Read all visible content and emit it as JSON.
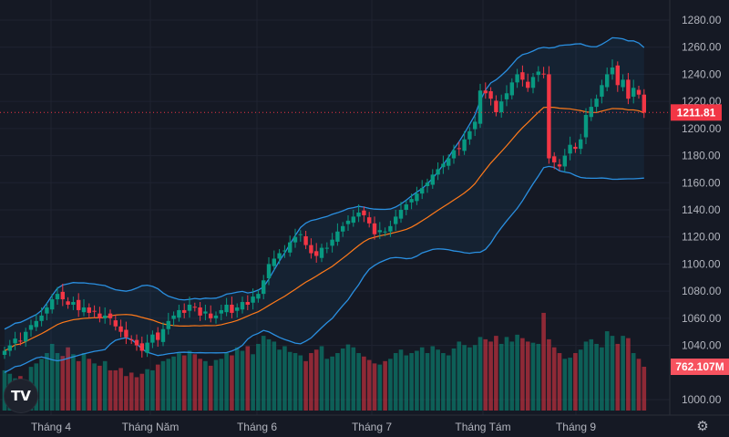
{
  "chart_data": {
    "type": "candlestick",
    "title": "",
    "x_tick_labels": [
      "Tháng 4",
      "Tháng Năm",
      "Tháng 6",
      "Tháng 7",
      "Tháng Tám",
      "Tháng 9"
    ],
    "y_tick_labels": [
      "1280.00",
      "1260.00",
      "1240.00",
      "1220.00",
      "1200.00",
      "1180.00",
      "1160.00",
      "1140.00",
      "1120.00",
      "1100.00",
      "1080.00",
      "1060.00",
      "1040.00",
      "1000.00"
    ],
    "ylim": [
      1000,
      1280
    ],
    "grid": true,
    "last_price_label": "1211.81",
    "last_volume_label": "762.107M",
    "close": [
      1036,
      1040,
      1045,
      1043,
      1050,
      1055,
      1058,
      1062,
      1068,
      1074,
      1078,
      1074,
      1070,
      1072,
      1066,
      1068,
      1064,
      1065,
      1060,
      1062,
      1060,
      1054,
      1050,
      1046,
      1044,
      1040,
      1036,
      1042,
      1048,
      1044,
      1052,
      1058,
      1062,
      1066,
      1064,
      1070,
      1068,
      1062,
      1065,
      1060,
      1062,
      1066,
      1070,
      1064,
      1068,
      1072,
      1070,
      1076,
      1078,
      1088,
      1100,
      1104,
      1108,
      1110,
      1116,
      1120,
      1122,
      1114,
      1108,
      1106,
      1112,
      1112,
      1118,
      1124,
      1128,
      1132,
      1135,
      1138,
      1136,
      1130,
      1122,
      1125,
      1124,
      1128,
      1135,
      1140,
      1144,
      1148,
      1152,
      1156,
      1160,
      1166,
      1170,
      1174,
      1178,
      1184,
      1185,
      1192,
      1198,
      1205,
      1228,
      1226,
      1222,
      1212,
      1220,
      1226,
      1234,
      1240,
      1236,
      1230,
      1238,
      1242,
      1240,
      1178,
      1175,
      1172,
      1180,
      1188,
      1185,
      1192,
      1210,
      1216,
      1222,
      1232,
      1240,
      1245,
      1232,
      1236,
      1222,
      1230,
      1225,
      1211.81
    ],
    "volume_millions": [
      700,
      640,
      560,
      600,
      520,
      760,
      820,
      900,
      1000,
      1160,
      1000,
      950,
      1100,
      980,
      860,
      1000,
      900,
      820,
      780,
      860,
      700,
      700,
      740,
      600,
      660,
      580,
      640,
      720,
      700,
      800,
      860,
      900,
      940,
      1000,
      960,
      1040,
      980,
      900,
      860,
      780,
      880,
      900,
      1000,
      960,
      1100,
      1040,
      1120,
      980,
      1160,
      1300,
      1240,
      1200,
      1060,
      1120,
      1020,
      1000,
      960,
      860,
      1000,
      1060,
      1120,
      900,
      940,
      1000,
      1080,
      1150,
      1100,
      1000,
      940,
      880,
      820,
      800,
      860,
      900,
      1000,
      1060,
      960,
      1000,
      1040,
      1100,
      1000,
      1120,
      1060,
      1000,
      960,
      1080,
      1200,
      1140,
      1100,
      1140,
      1280,
      1240,
      1200,
      1300,
      1160,
      1280,
      1200,
      1320,
      1260,
      1200,
      1180,
      1160,
      1700,
      1240,
      1100,
      1000,
      900,
      920,
      1000,
      1060,
      1200,
      1240,
      1160,
      1100,
      1380,
      1300,
      1160,
      1300,
      1260,
      1000,
      900,
      762.107
    ],
    "indicators": {
      "bollinger_period": 20,
      "bollinger_std": 2
    },
    "colors": {
      "up": "#089981",
      "down": "#f23645",
      "basis": "#ff7a1a",
      "bands": "#2a8fe0",
      "background": "#151924"
    }
  },
  "logo": "TV",
  "icons": {
    "settings": "gear-icon"
  }
}
